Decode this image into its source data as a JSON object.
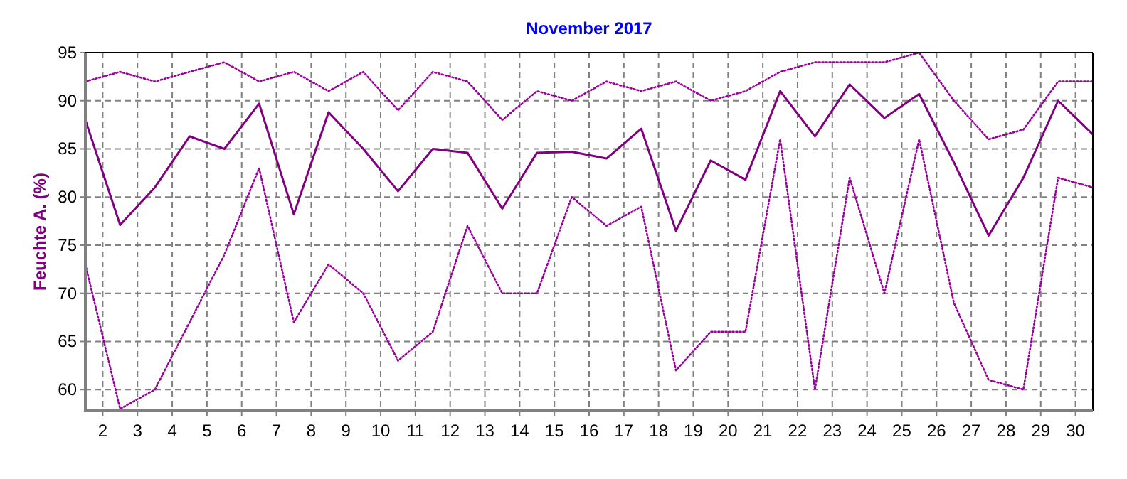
{
  "chart_data": {
    "type": "line",
    "title": "November 2017",
    "ylabel": "Feuchte A. (%)",
    "x": [
      1.5,
      2.5,
      3.5,
      4.5,
      5.5,
      6.5,
      7.5,
      8.5,
      9.5,
      10.5,
      11.5,
      12.5,
      13.5,
      14.5,
      15.5,
      16.5,
      17.5,
      18.5,
      19.5,
      20.5,
      21.5,
      22.5,
      23.5,
      24.5,
      25.5,
      26.5,
      27.5,
      28.5,
      29.5,
      30.5
    ],
    "xlim": [
      1.5,
      30.5
    ],
    "xticks": [
      2,
      3,
      4,
      5,
      6,
      7,
      8,
      9,
      10,
      11,
      12,
      13,
      14,
      15,
      16,
      17,
      18,
      19,
      20,
      21,
      22,
      23,
      24,
      25,
      26,
      27,
      28,
      29,
      30
    ],
    "ylim": [
      57.8,
      95
    ],
    "yticks": [
      60,
      65,
      70,
      75,
      80,
      85,
      90,
      95
    ],
    "grid": true,
    "series": [
      {
        "color": "#990099",
        "line_style": "dotted",
        "values": [
          92,
          93,
          92,
          93,
          94,
          92,
          93,
          91,
          93,
          89,
          93,
          92,
          88,
          91,
          90,
          92,
          91,
          92,
          90,
          91,
          93,
          94,
          94,
          94,
          95,
          90,
          86,
          87,
          92,
          92
        ]
      },
      {
        "color": "#800080",
        "line_style": "solid",
        "values": [
          88,
          77.1,
          81,
          86.3,
          85,
          89.7,
          78.2,
          88.8,
          85,
          80.6,
          85,
          84.6,
          78.8,
          84.6,
          84.7,
          84,
          87.1,
          76.5,
          83.8,
          81.8,
          91,
          86.3,
          91.7,
          88.2,
          90.7,
          83.6,
          76,
          82,
          90,
          86.5
        ]
      },
      {
        "color": "#990099",
        "line_style": "dotted",
        "values": [
          73,
          58,
          60,
          67,
          74,
          83,
          67,
          73,
          70,
          63,
          66,
          77,
          70,
          70,
          80,
          77,
          79,
          62,
          66,
          66,
          86,
          60,
          82,
          70,
          86,
          69,
          61,
          60,
          82,
          81
        ]
      }
    ]
  }
}
